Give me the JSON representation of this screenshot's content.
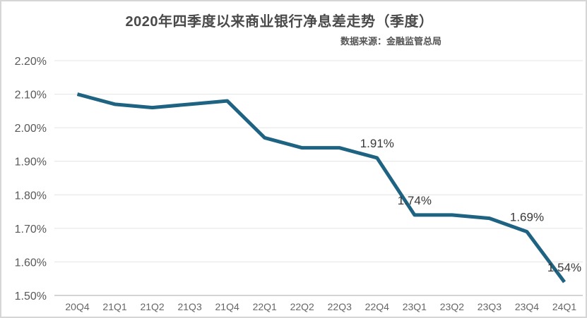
{
  "card": {
    "background": "#ffffff",
    "border_color": "#d6d6d6"
  },
  "chart_data": {
    "type": "line",
    "title": "2020年四季度以来商业银行净息差走势（季度）",
    "source_note": "数据来源：金融监管总局",
    "categories": [
      "20Q4",
      "21Q1",
      "21Q2",
      "21Q3",
      "21Q4",
      "22Q1",
      "22Q2",
      "22Q3",
      "22Q4",
      "23Q1",
      "23Q2",
      "23Q3",
      "23Q4",
      "24Q1"
    ],
    "values": [
      2.1,
      2.07,
      2.06,
      2.07,
      2.08,
      1.97,
      1.94,
      1.94,
      1.91,
      1.74,
      1.74,
      1.73,
      1.69,
      1.54
    ],
    "point_labels": [
      null,
      null,
      null,
      null,
      null,
      null,
      null,
      null,
      "1.91%",
      "1.74%",
      null,
      null,
      "1.69%",
      "1.54%"
    ],
    "xlabel": "",
    "ylabel": "",
    "ylim": [
      1.5,
      2.2
    ],
    "ytick_step": 0.1,
    "ytick_labels": [
      "2.20%",
      "2.10%",
      "2.00%",
      "1.90%",
      "1.80%",
      "1.70%",
      "1.60%",
      "1.50%"
    ],
    "grid": true,
    "legend": "none",
    "line_color": "#1f6383",
    "label_color": "#383838",
    "tick_color": "#595959"
  }
}
